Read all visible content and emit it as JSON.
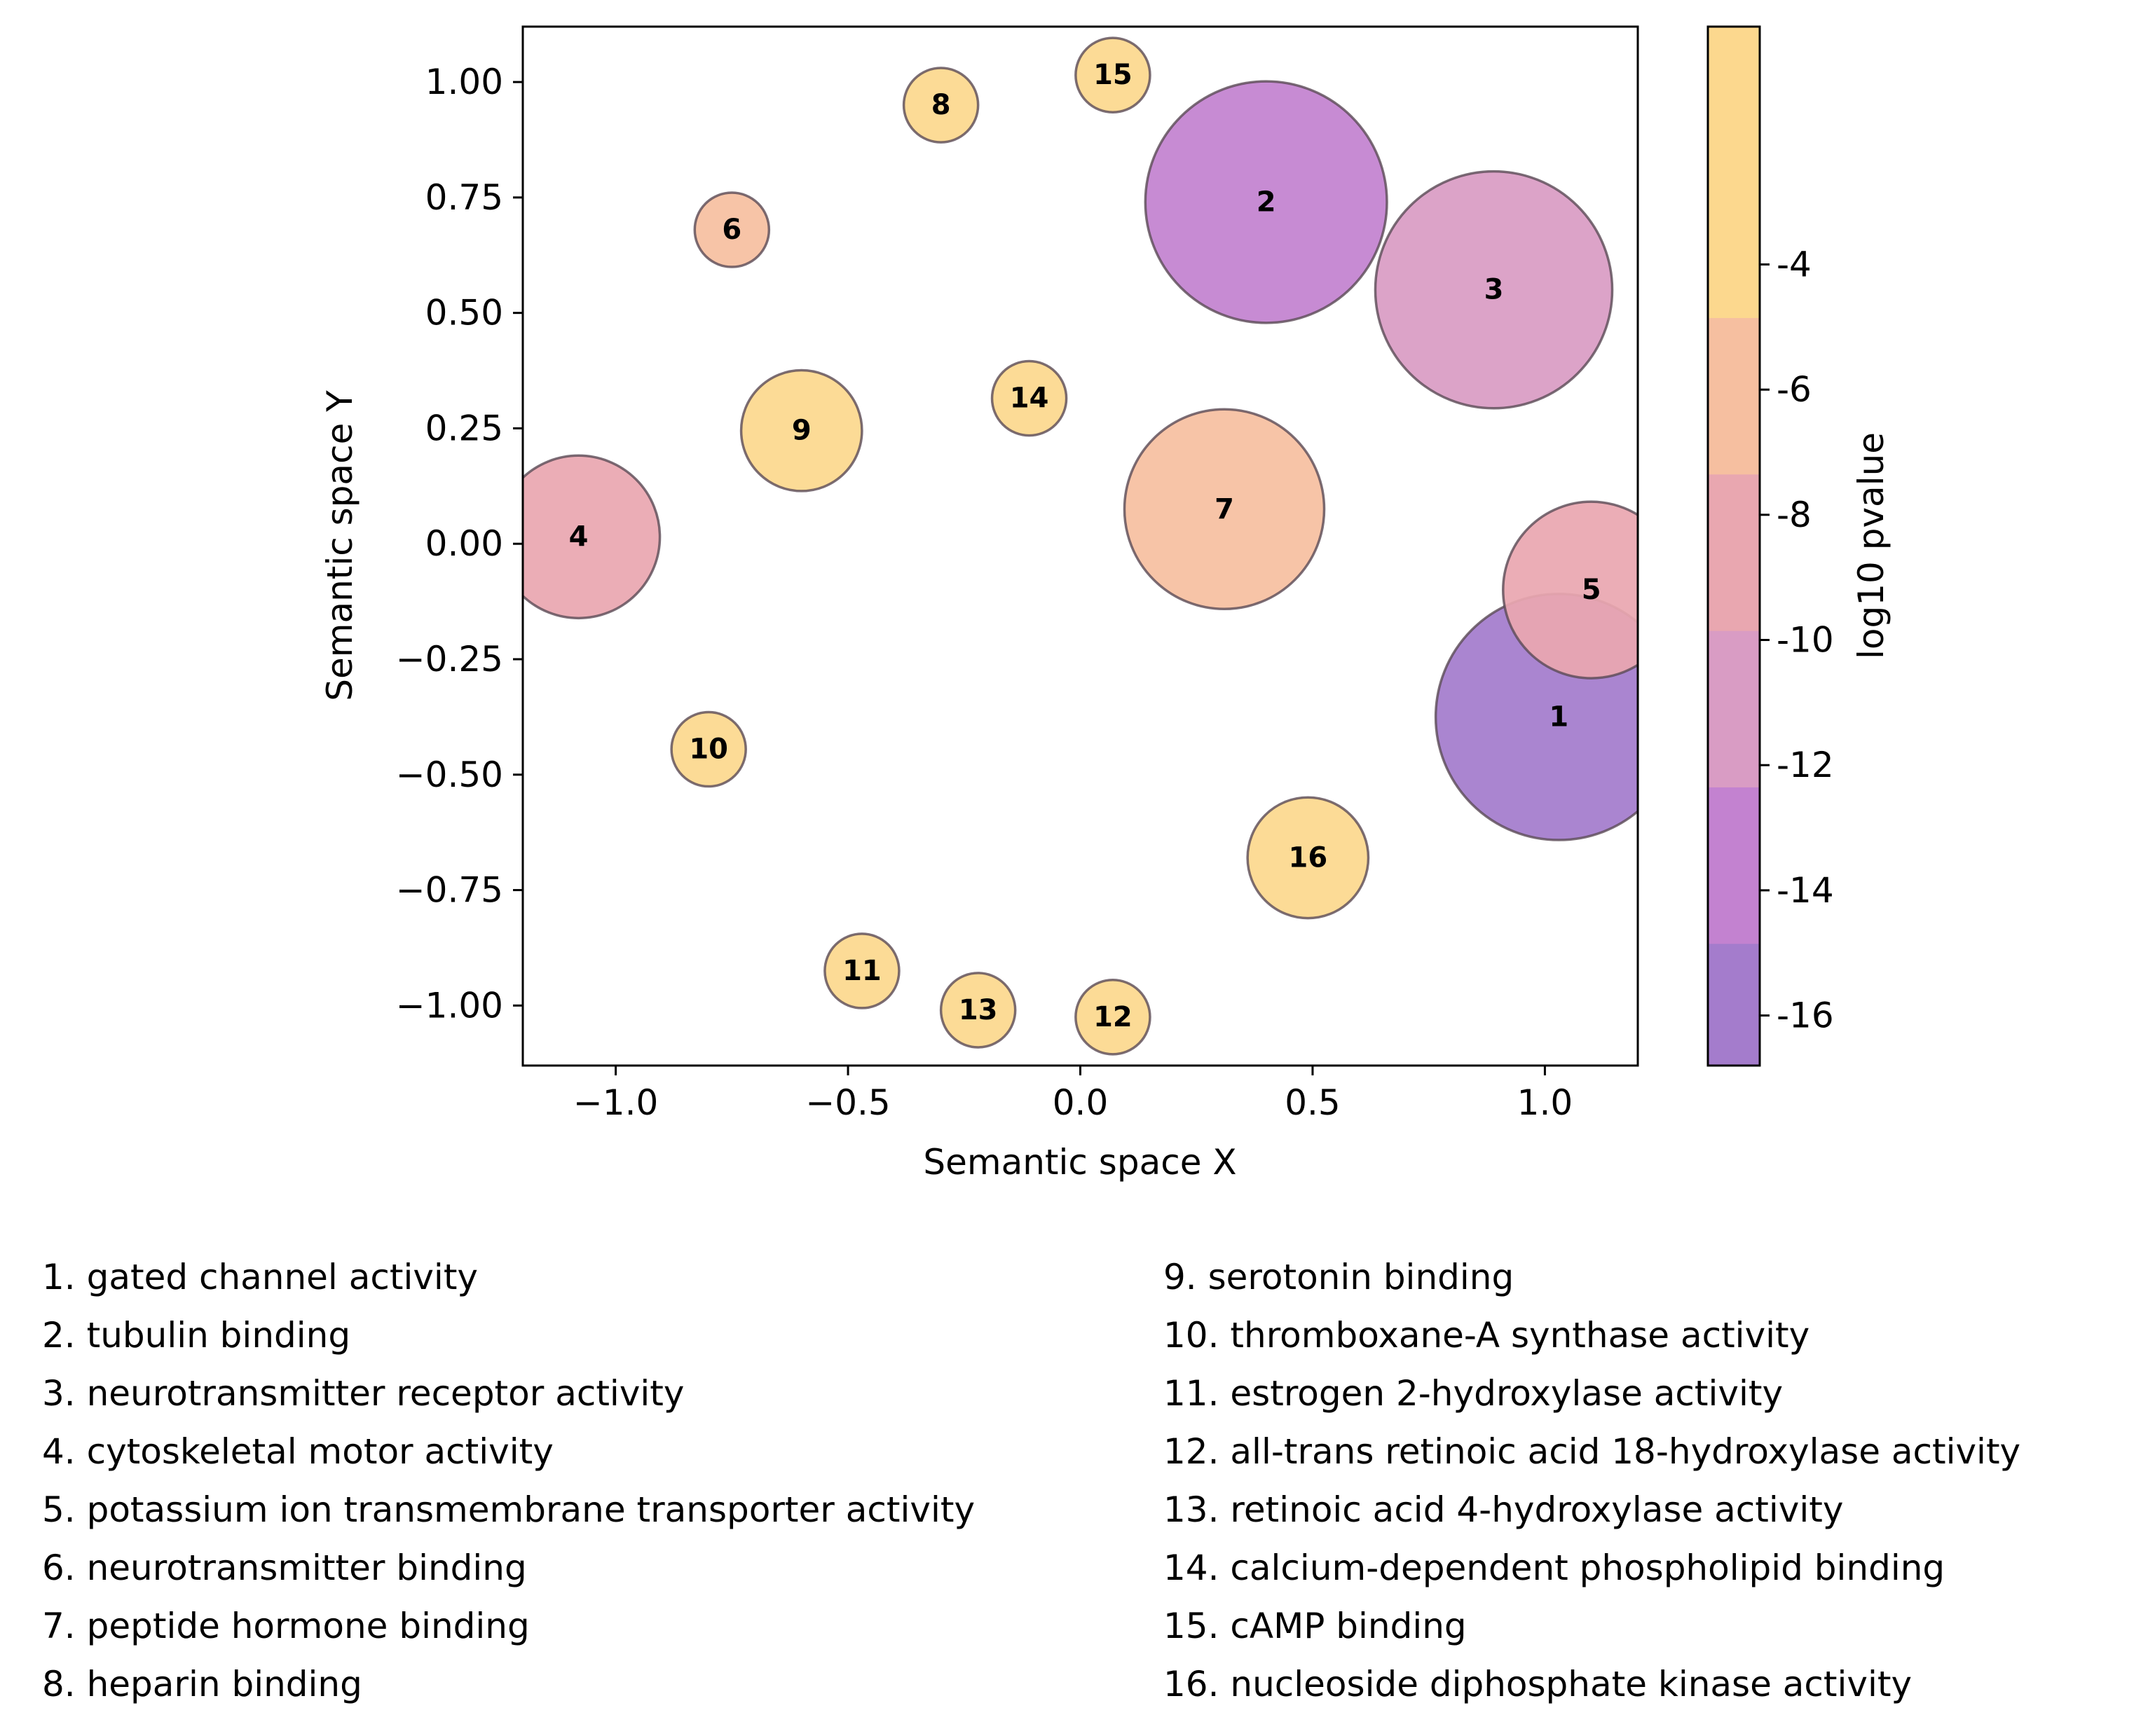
{
  "chart_data": {
    "type": "scatter",
    "xlabel": "Semantic space X",
    "ylabel": "Semantic space Y",
    "xlim": [
      -1.2,
      1.2
    ],
    "ylim": [
      -1.13,
      1.12
    ],
    "x_ticks": [
      -1.0,
      -0.5,
      0.0,
      0.5,
      1.0
    ],
    "x_tick_labels": [
      "−1.0",
      "−0.5",
      "0.0",
      "0.5",
      "1.0"
    ],
    "y_ticks": [
      1.0,
      0.75,
      0.5,
      0.25,
      0.0,
      -0.25,
      -0.5,
      -0.75,
      -1.0
    ],
    "y_tick_labels": [
      "1.00",
      "0.75",
      "0.50",
      "0.25",
      "0.00",
      "−0.25",
      "−0.50",
      "−0.75",
      "−1.00"
    ],
    "grid": false,
    "colorbar": {
      "label": "log10 pvalue",
      "range": [
        -16.8,
        -0.2
      ],
      "bins": [
        {
          "from": -16.8,
          "to": -14.85,
          "color": "#a47ccc"
        },
        {
          "from": -14.85,
          "to": -12.35,
          "color": "#c382d0"
        },
        {
          "from": -12.35,
          "to": -9.85,
          "color": "#d99cc4"
        },
        {
          "from": -9.85,
          "to": -7.35,
          "color": "#e9a7b0"
        },
        {
          "from": -7.35,
          "to": -4.85,
          "color": "#f6bfa0"
        },
        {
          "from": -4.85,
          "to": -0.2,
          "color": "#fcd88e"
        }
      ],
      "ticks": [
        -4,
        -6,
        -8,
        -10,
        -12,
        -14,
        -16
      ],
      "tick_labels": [
        "-4",
        "-6",
        "-8",
        "-10",
        "-12",
        "-14",
        "-16"
      ]
    },
    "points": [
      {
        "id": "1",
        "x": 1.03,
        "y": -0.375,
        "size": 0.265,
        "log10_pvalue": -16
      },
      {
        "id": "2",
        "x": 0.4,
        "y": 0.74,
        "size": 0.26,
        "log10_pvalue": -13.5
      },
      {
        "id": "3",
        "x": 0.89,
        "y": 0.55,
        "size": 0.255,
        "log10_pvalue": -11
      },
      {
        "id": "4",
        "x": -1.08,
        "y": 0.015,
        "size": 0.175,
        "log10_pvalue": -8.5
      },
      {
        "id": "5",
        "x": 1.1,
        "y": -0.1,
        "size": 0.19,
        "log10_pvalue": -8.5
      },
      {
        "id": "6",
        "x": -0.75,
        "y": 0.68,
        "size": 0.08,
        "log10_pvalue": -6
      },
      {
        "id": "7",
        "x": 0.31,
        "y": 0.075,
        "size": 0.215,
        "log10_pvalue": -6
      },
      {
        "id": "8",
        "x": -0.3,
        "y": 0.95,
        "size": 0.08,
        "log10_pvalue": -3
      },
      {
        "id": "9",
        "x": -0.6,
        "y": 0.245,
        "size": 0.13,
        "log10_pvalue": -3
      },
      {
        "id": "10",
        "x": -0.8,
        "y": -0.445,
        "size": 0.08,
        "log10_pvalue": -3
      },
      {
        "id": "11",
        "x": -0.47,
        "y": -0.925,
        "size": 0.08,
        "log10_pvalue": -3
      },
      {
        "id": "12",
        "x": 0.07,
        "y": -1.025,
        "size": 0.08,
        "log10_pvalue": -3
      },
      {
        "id": "13",
        "x": -0.22,
        "y": -1.01,
        "size": 0.08,
        "log10_pvalue": -3
      },
      {
        "id": "14",
        "x": -0.11,
        "y": 0.315,
        "size": 0.08,
        "log10_pvalue": -3
      },
      {
        "id": "15",
        "x": 0.07,
        "y": 1.015,
        "size": 0.08,
        "log10_pvalue": -3
      },
      {
        "id": "16",
        "x": 0.49,
        "y": -0.68,
        "size": 0.13,
        "log10_pvalue": -3
      }
    ],
    "legend_left": [
      "1. gated channel activity",
      "2. tubulin binding",
      "3. neurotransmitter receptor activity",
      "4. cytoskeletal motor activity",
      "5. potassium ion transmembrane transporter activity",
      "6. neurotransmitter binding",
      "7. peptide hormone binding",
      "8. heparin binding"
    ],
    "legend_right": [
      "9. serotonin binding",
      "10. thromboxane-A synthase activity",
      "11. estrogen 2-hydroxylase activity",
      "12. all-trans retinoic acid 18-hydroxylase activity",
      "13. retinoic acid 4-hydroxylase activity",
      "14. calcium-dependent phospholipid binding",
      "15. cAMP binding",
      "16. nucleoside diphosphate kinase activity"
    ]
  }
}
